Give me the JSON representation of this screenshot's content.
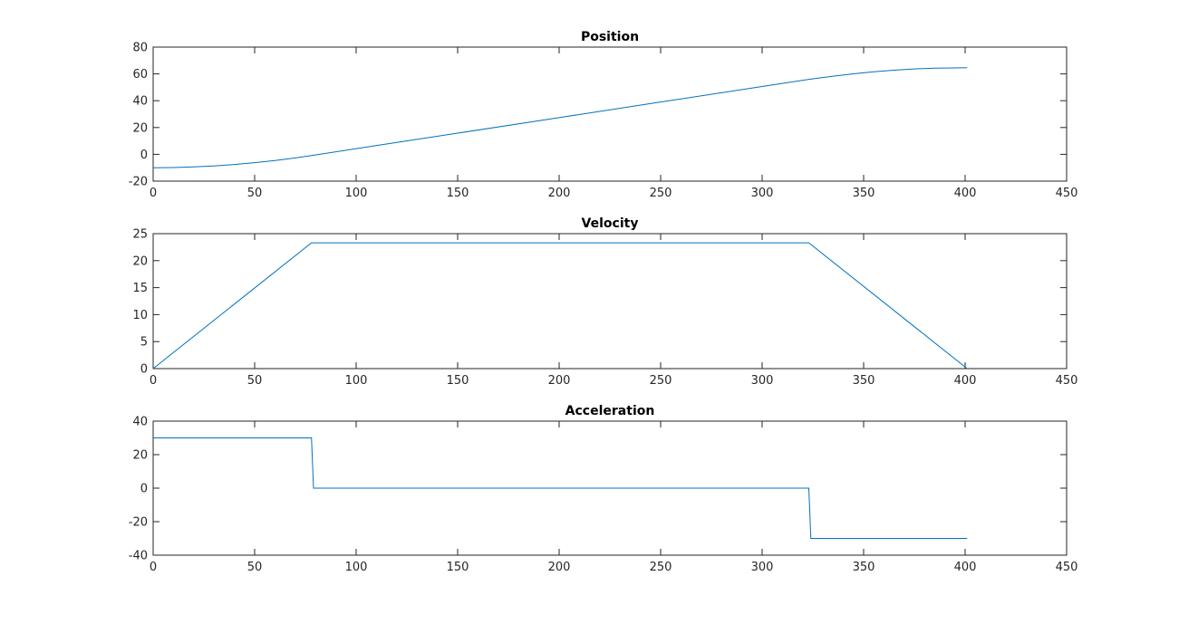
{
  "colors": {
    "series": "#0072BD",
    "axes": "#262626",
    "background": "#ffffff"
  },
  "chart_data": [
    {
      "type": "line",
      "title": "Position",
      "xlabel": "",
      "ylabel": "",
      "xlim": [
        0,
        450
      ],
      "ylim": [
        -20,
        80
      ],
      "xticks": [
        0,
        50,
        100,
        150,
        200,
        250,
        300,
        350,
        400,
        450
      ],
      "yticks": [
        -20,
        0,
        20,
        40,
        60,
        80
      ],
      "grid": false,
      "series": [
        {
          "x": [
            0,
            10,
            20,
            30,
            40,
            50,
            60,
            70,
            78,
            100,
            150,
            200,
            250,
            300,
            323,
            335,
            345,
            355,
            365,
            375,
            385,
            395,
            401
          ],
          "y": [
            -10,
            -9.85,
            -9.4,
            -8.65,
            -7.6,
            -6.25,
            -4.6,
            -2.65,
            -0.9,
            4.2,
            15.8,
            27.4,
            39.0,
            50.6,
            55.9,
            58.3,
            60.1,
            61.6,
            62.8,
            63.7,
            64.3,
            64.5,
            64.6
          ]
        }
      ]
    },
    {
      "type": "line",
      "title": "Velocity",
      "xlabel": "",
      "ylabel": "",
      "xlim": [
        0,
        450
      ],
      "ylim": [
        0,
        25
      ],
      "xticks": [
        0,
        50,
        100,
        150,
        200,
        250,
        300,
        350,
        400,
        450
      ],
      "yticks": [
        0,
        5,
        10,
        15,
        20,
        25
      ],
      "grid": false,
      "series": [
        {
          "x": [
            0,
            78,
            323,
            401
          ],
          "y": [
            0,
            23.3,
            23.3,
            0
          ]
        }
      ]
    },
    {
      "type": "line",
      "title": "Acceleration",
      "xlabel": "",
      "ylabel": "",
      "xlim": [
        0,
        450
      ],
      "ylim": [
        -40,
        40
      ],
      "xticks": [
        0,
        50,
        100,
        150,
        200,
        250,
        300,
        350,
        400,
        450
      ],
      "yticks": [
        -40,
        -20,
        0,
        20,
        40
      ],
      "grid": false,
      "series": [
        {
          "x": [
            0,
            78,
            79,
            323,
            324,
            401
          ],
          "y": [
            30,
            30,
            0,
            0,
            -30,
            -30
          ]
        }
      ]
    }
  ]
}
